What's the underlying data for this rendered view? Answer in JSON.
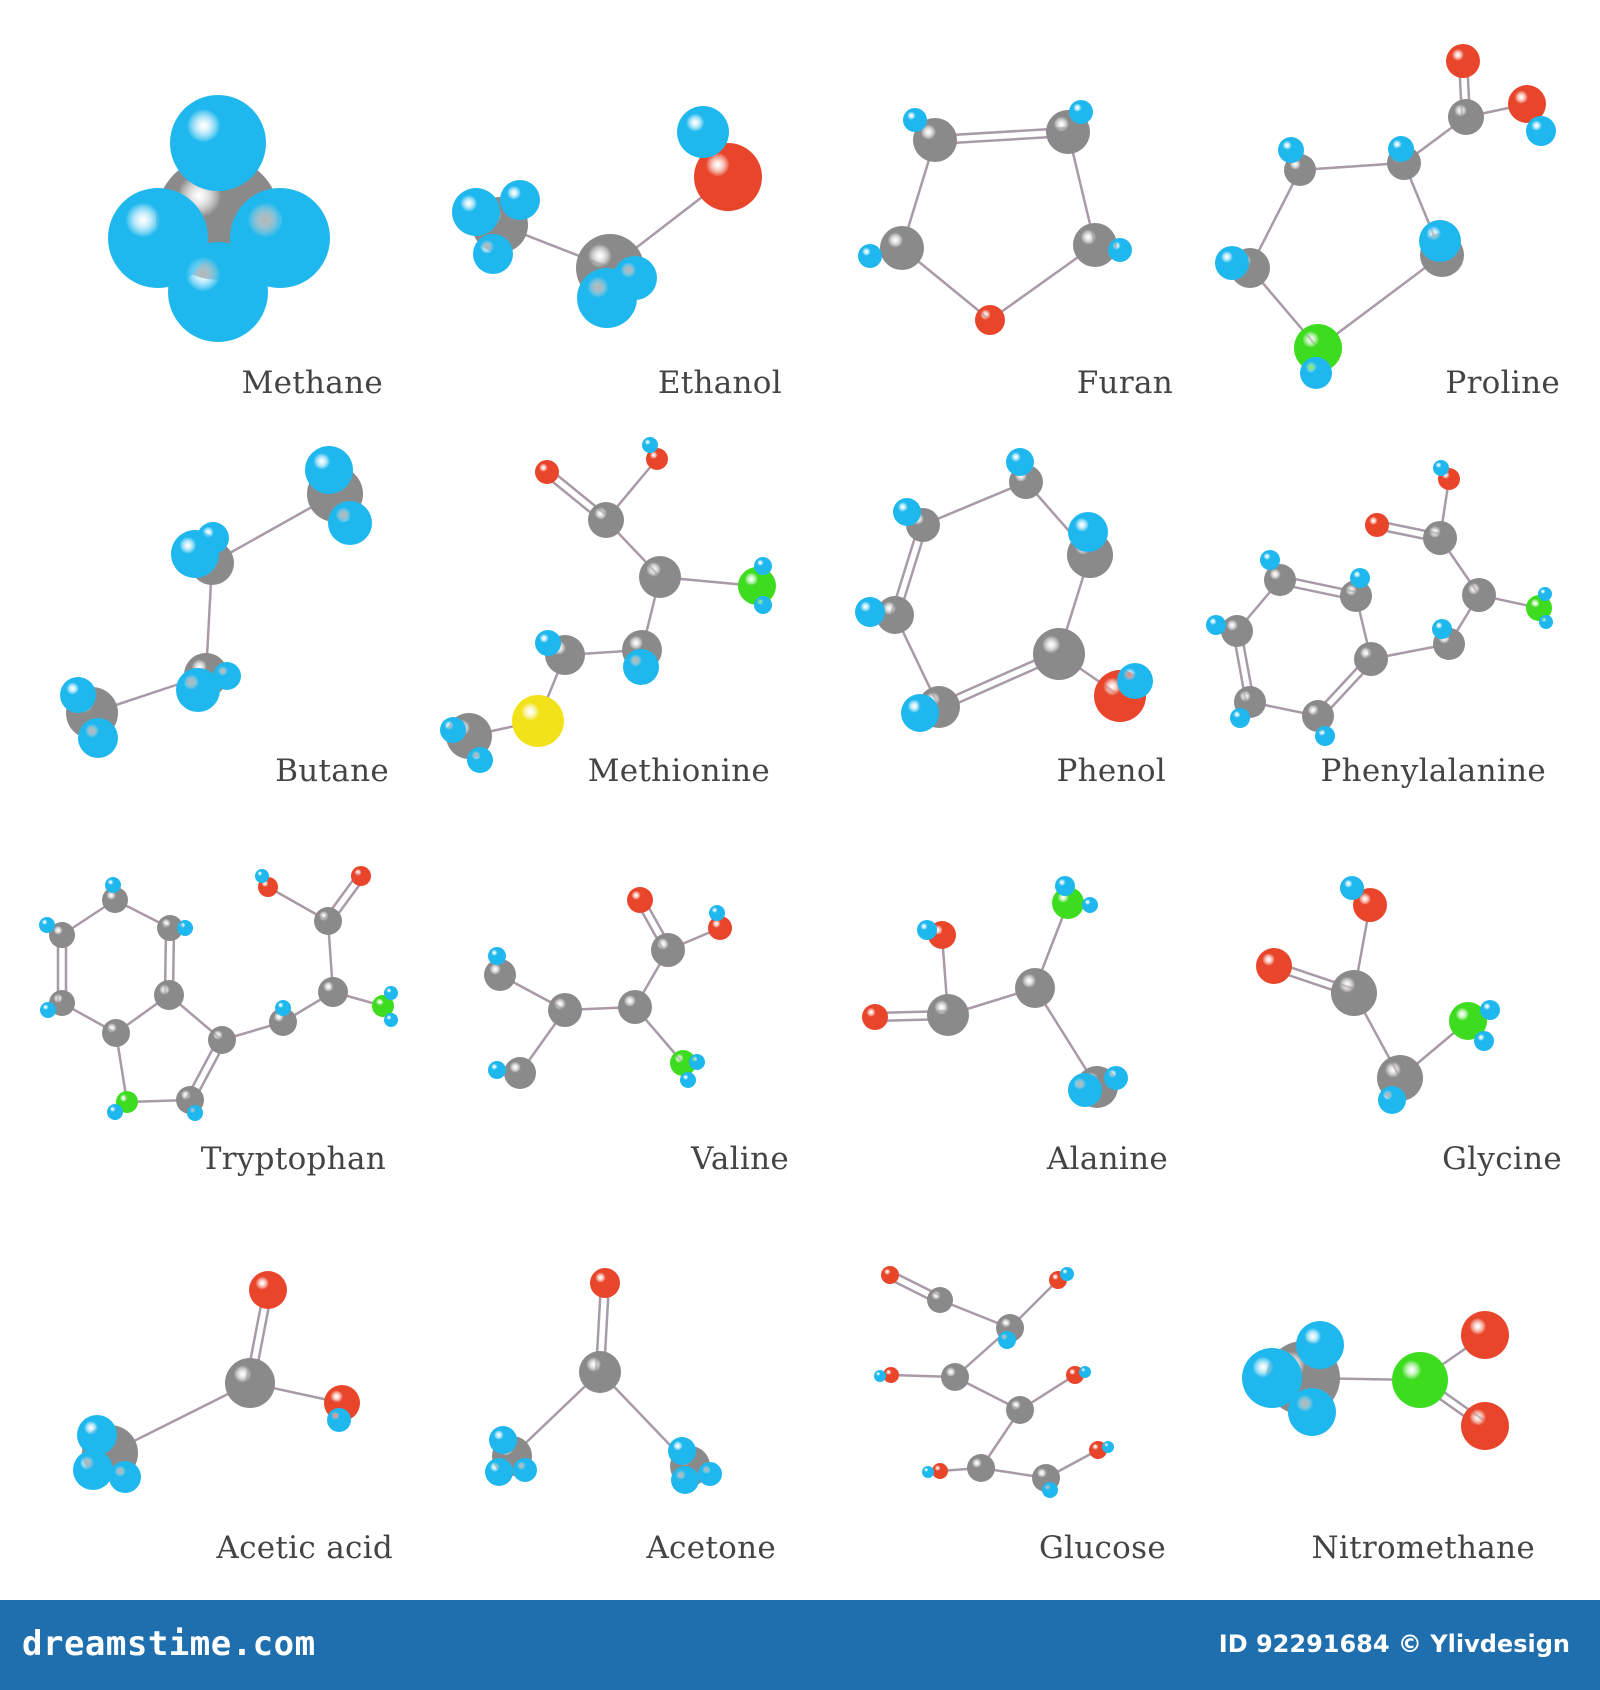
{
  "colors": {
    "hydrogen": "#1fb8ee",
    "carbon": "#8a8a8a",
    "oxygen": "#e8452a",
    "nitrogen": "#3ddc1f",
    "sulfur": "#f2e21a",
    "bond": "#a89aa6",
    "footer_background": "#1f6fae"
  },
  "molecules": [
    {
      "name": "Methane"
    },
    {
      "name": "Ethanol"
    },
    {
      "name": "Furan"
    },
    {
      "name": "Proline"
    },
    {
      "name": "Butane"
    },
    {
      "name": "Methionine"
    },
    {
      "name": "Phenol"
    },
    {
      "name": "Phenylalanine"
    },
    {
      "name": "Tryptophan"
    },
    {
      "name": "Valine"
    },
    {
      "name": "Alanine"
    },
    {
      "name": "Glycine"
    },
    {
      "name": "Acetic acid"
    },
    {
      "name": "Acetone"
    },
    {
      "name": "Glucose"
    },
    {
      "name": "Nitromethane"
    }
  ],
  "footer": {
    "brand": "dreamstime.com",
    "image_id": "ID 92291684 © Ylivdesign"
  }
}
